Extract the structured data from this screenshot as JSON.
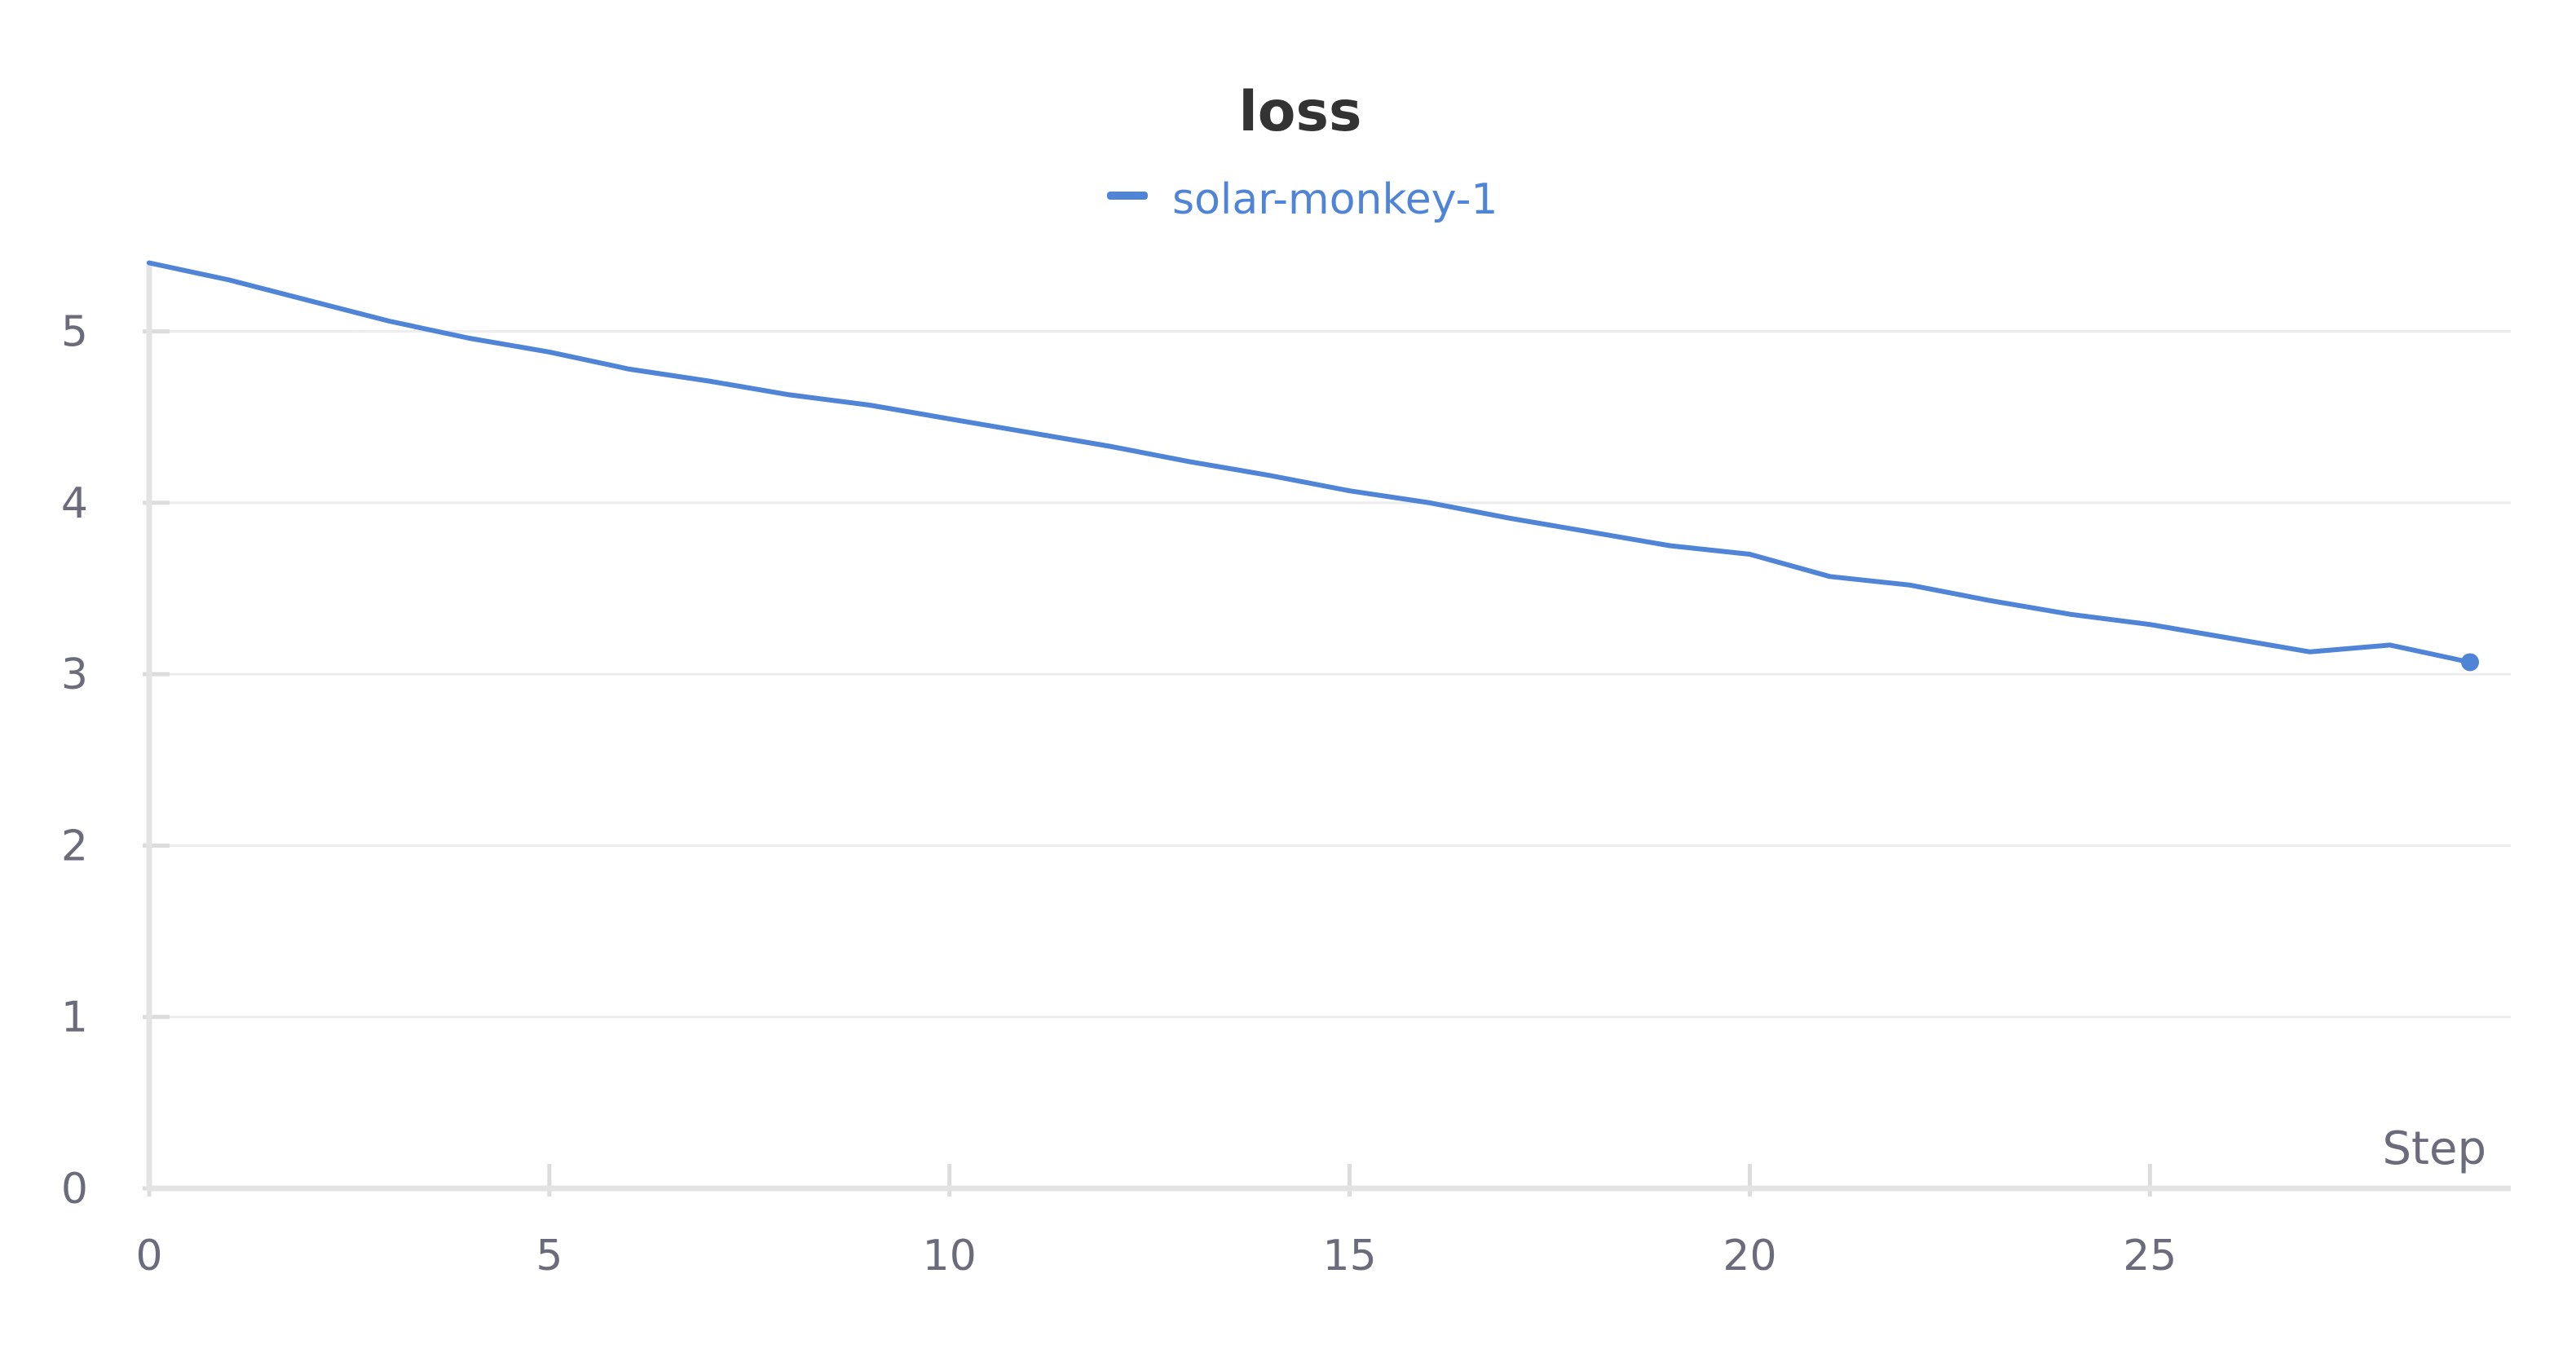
{
  "chart_data": {
    "type": "line",
    "title": "loss",
    "xlabel": "Step",
    "ylabel": "",
    "xlim": [
      0,
      29
    ],
    "ylim": [
      0,
      5.45
    ],
    "xticks": [
      0,
      5,
      10,
      15,
      20,
      25
    ],
    "yticks": [
      0,
      1,
      2,
      3,
      4,
      5
    ],
    "grid": true,
    "legend_position": "top-center",
    "series": [
      {
        "name": "solar-monkey-1",
        "color": "#4f84d6",
        "x": [
          0,
          1,
          2,
          3,
          4,
          5,
          6,
          7,
          8,
          9,
          10,
          11,
          12,
          13,
          14,
          15,
          16,
          17,
          18,
          19,
          20,
          21,
          22,
          23,
          24,
          25,
          26,
          27,
          28,
          29
        ],
        "y": [
          5.4,
          5.3,
          5.18,
          5.06,
          4.96,
          4.88,
          4.78,
          4.71,
          4.63,
          4.57,
          4.49,
          4.41,
          4.33,
          4.24,
          4.16,
          4.07,
          4.0,
          3.91,
          3.83,
          3.75,
          3.7,
          3.57,
          3.52,
          3.43,
          3.35,
          3.29,
          3.21,
          3.13,
          3.17,
          3.07
        ]
      }
    ]
  }
}
